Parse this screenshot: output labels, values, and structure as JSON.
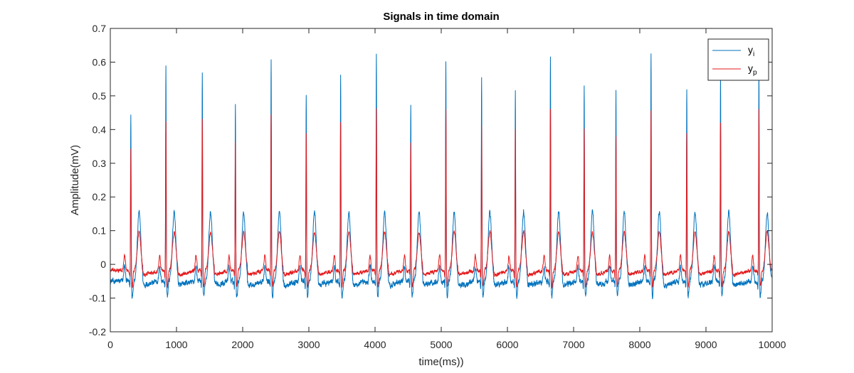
{
  "chart_data": {
    "type": "line",
    "title": "Signals in time domain",
    "xlabel": "time(ms))",
    "ylabel": "Amplitude(mV)",
    "xlim": [
      0,
      10000
    ],
    "ylim": [
      -0.2,
      0.7
    ],
    "xticks": [
      0,
      1000,
      2000,
      3000,
      4000,
      5000,
      6000,
      7000,
      8000,
      9000,
      10000
    ],
    "yticks": [
      -0.2,
      -0.1,
      0,
      0.1,
      0.2,
      0.3,
      0.4,
      0.5,
      0.6,
      0.7
    ],
    "grid": false,
    "legend_position": "top-right",
    "series": [
      {
        "name": "y",
        "name_sub": "i",
        "color": "#0072BD",
        "baseline": -0.05,
        "s_depth": -0.095,
        "t_scale": 1.0,
        "noise": 0.006,
        "r_peaks": [
          0.448,
          0.592,
          0.569,
          0.482,
          0.606,
          0.506,
          0.566,
          0.625,
          0.474,
          0.616,
          0.556,
          0.518,
          0.623,
          0.539,
          0.518,
          0.632,
          0.521,
          0.565,
          0.581
        ]
      },
      {
        "name": "y",
        "name_sub": "p",
        "color": "#E41A1C",
        "baseline": -0.018,
        "s_depth": -0.065,
        "t_scale": 0.57,
        "noise": 0.004,
        "r_peaks": [
          0.345,
          0.43,
          0.432,
          0.37,
          0.45,
          0.39,
          0.428,
          0.464,
          0.36,
          0.46,
          0.415,
          0.4,
          0.462,
          0.41,
          0.39,
          0.46,
          0.39,
          0.42,
          0.465
        ]
      }
    ],
    "beats_ms": [
      310,
      840,
      1390,
      1890,
      2430,
      2960,
      3480,
      4020,
      4540,
      5070,
      5610,
      6120,
      6650,
      7160,
      7640,
      8170,
      8710,
      9220,
      9800
    ],
    "t_wave_peak": 0.19
  }
}
